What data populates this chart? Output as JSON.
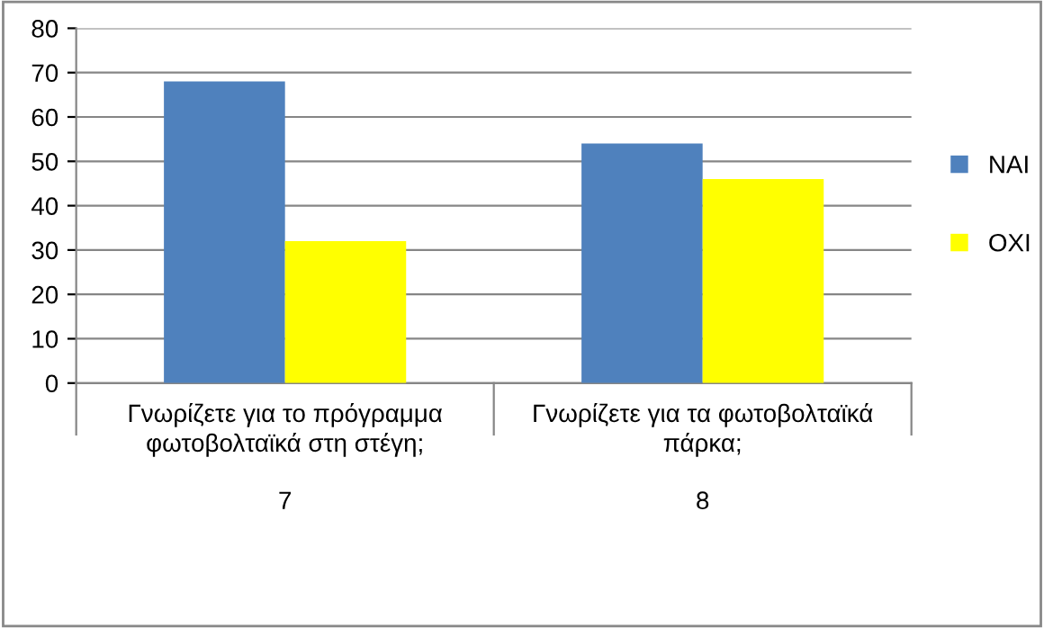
{
  "chart_data": {
    "type": "bar",
    "categories": [
      "Γνωρίζετε για το πρόγραμμα\nφωτοβολταϊκά στη στέγη;\n\n7",
      "Γνωρίζετε για τα φωτοβολταϊκά\nπάρκα;\n\n8"
    ],
    "series": [
      {
        "name": "ΝΑΙ",
        "color": "#4f81bd",
        "values": [
          68,
          54
        ]
      },
      {
        "name": "ΟΧΙ",
        "color": "#ffff00",
        "values": [
          32,
          46
        ]
      }
    ],
    "ylim": [
      0,
      80
    ],
    "yticks": [
      0,
      10,
      20,
      30,
      40,
      50,
      60,
      70,
      80
    ],
    "grid": "y",
    "legend": "right"
  }
}
